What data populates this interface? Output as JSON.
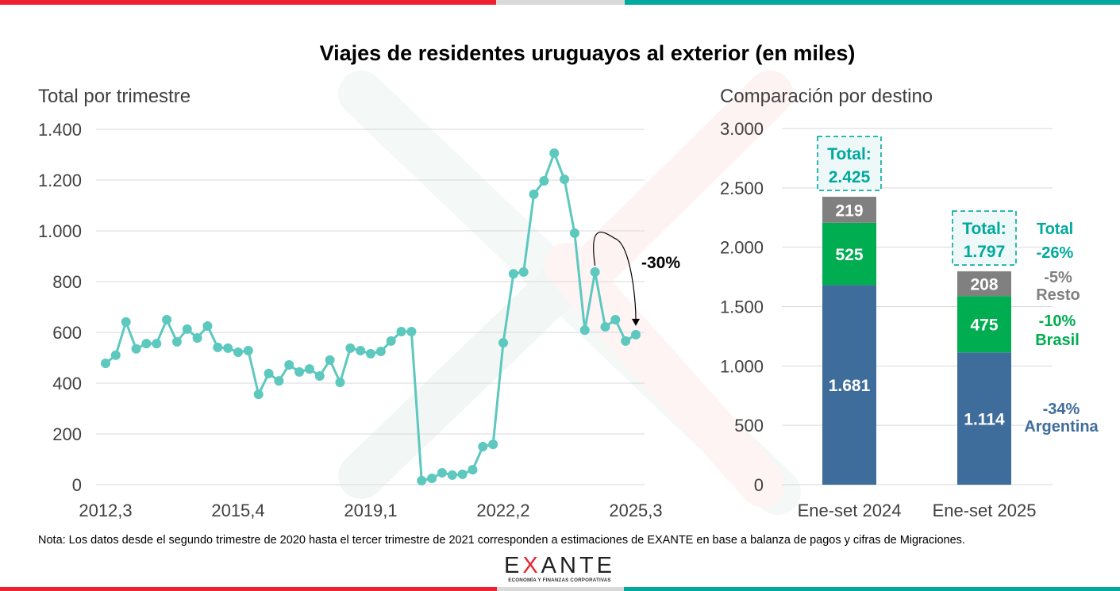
{
  "title": "Viajes de residentes uruguayos al exterior (en miles)",
  "note": "Nota: Los datos desde el segundo trimestre de 2020 hasta el tercer trimestre de 2021 corresponden a estimaciones de EXANTE en base a balanza de pagos y cifras de Migraciones.",
  "logo": {
    "name": "EXANTE",
    "name_prefix": "E",
    "name_x": "X",
    "name_suffix": "ANTE",
    "tagline": "ECONOMÍA Y FINANZAS CORPORATIVAS"
  },
  "colors": {
    "red": "#ee2131",
    "teal": "#00a99d",
    "line": "#5cc8be",
    "argentina": "#3f6d9b",
    "brasil": "#00ad50",
    "resto": "#808080",
    "total_box_bg": "#eef8f8"
  },
  "chart_data": [
    {
      "type": "line",
      "title": "Total por trimestre",
      "xlabel": "",
      "ylabel": "",
      "ylim": [
        0,
        1400
      ],
      "yticks": [
        0,
        200,
        400,
        600,
        800,
        1000,
        1200,
        1400
      ],
      "ytick_labels": [
        "0",
        "200",
        "400",
        "600",
        "800",
        "1.000",
        "1.200",
        "1.400"
      ],
      "xtick_labels": [
        "2012,3",
        "2015,4",
        "2019,1",
        "2022,2",
        "2025,3"
      ],
      "xtick_index": [
        0,
        13,
        26,
        39,
        52
      ],
      "grid": true,
      "x": [
        "2012,3",
        "2012,4",
        "2013,1",
        "2013,2",
        "2013,3",
        "2013,4",
        "2014,1",
        "2014,2",
        "2014,3",
        "2014,4",
        "2015,1",
        "2015,2",
        "2015,3",
        "2015,4",
        "2016,1",
        "2016,2",
        "2016,3",
        "2016,4",
        "2017,1",
        "2017,2",
        "2017,3",
        "2017,4",
        "2018,1",
        "2018,2",
        "2018,3",
        "2018,4",
        "2019,1",
        "2019,2",
        "2019,3",
        "2019,4",
        "2020,1",
        "2020,2",
        "2020,3",
        "2020,4",
        "2021,1",
        "2021,2",
        "2021,3",
        "2021,4",
        "2022,1",
        "2022,2",
        "2022,3",
        "2022,4",
        "2023,1",
        "2023,2",
        "2023,3",
        "2023,4",
        "2024,1",
        "2024,2",
        "2024,3",
        "2024,4",
        "2025,1",
        "2025,2",
        "2025,3"
      ],
      "series": [
        {
          "name": "Total por trimestre",
          "values": [
            478,
            510,
            641,
            535,
            556,
            556,
            650,
            563,
            613,
            578,
            625,
            541,
            538,
            522,
            528,
            356,
            438,
            409,
            472,
            444,
            456,
            428,
            491,
            403,
            538,
            528,
            516,
            525,
            566,
            603,
            603,
            16,
            25,
            47,
            38,
            41,
            59,
            150,
            159,
            559,
            831,
            838,
            1144,
            1197,
            1306,
            1203,
            991,
            609,
            838,
            622,
            650,
            566,
            591
          ]
        }
      ],
      "annotations": [
        {
          "text": "-30%",
          "from": "2024,3",
          "to": "2025,3"
        }
      ]
    },
    {
      "type": "bar",
      "stacked": true,
      "title": "Comparación por destino",
      "categories": [
        "Ene-set 2024",
        "Ene-set 2025"
      ],
      "ylim": [
        0,
        3000
      ],
      "yticks": [
        0,
        500,
        1000,
        1500,
        2000,
        2500,
        3000
      ],
      "ytick_labels": [
        "0",
        "500",
        "1.000",
        "1.500",
        "2.000",
        "2.500",
        "3.000"
      ],
      "grid": true,
      "series": [
        {
          "name": "Argentina",
          "values": [
            1681,
            1114
          ],
          "labels": [
            "1.681",
            "1.114"
          ],
          "change": "-34%"
        },
        {
          "name": "Brasil",
          "values": [
            525,
            475
          ],
          "labels": [
            "525",
            "475"
          ],
          "change": "-10%"
        },
        {
          "name": "Resto",
          "values": [
            219,
            208
          ],
          "labels": [
            "219",
            "208"
          ],
          "change": "-5%"
        }
      ],
      "totals": [
        {
          "label": "Total:",
          "value": "2.425"
        },
        {
          "label": "Total:",
          "value": "1.797"
        }
      ],
      "total_change": {
        "label": "Total",
        "value": "-26%"
      }
    }
  ]
}
